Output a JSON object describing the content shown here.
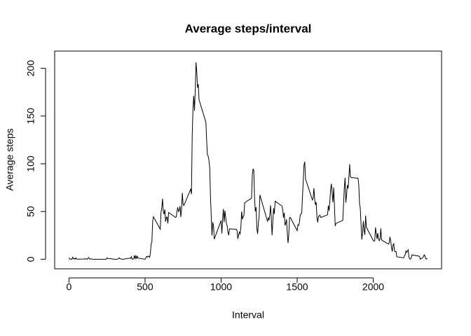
{
  "chart_data": {
    "type": "line",
    "title": "Average steps/interval",
    "x_label": "Interval",
    "y_label": "Average steps",
    "color": "#000000",
    "xlim": [
      -94.2,
      2449.2
    ],
    "ylim": [
      -10,
      218
    ],
    "xticks": [
      0,
      500,
      1000,
      1500,
      2000
    ],
    "yticks": [
      0,
      50,
      100,
      150,
      200
    ],
    "x": [
      0,
      5,
      10,
      15,
      20,
      25,
      30,
      35,
      40,
      45,
      50,
      55,
      100,
      105,
      110,
      115,
      120,
      125,
      130,
      135,
      140,
      145,
      150,
      155,
      200,
      215,
      230,
      245,
      250,
      255,
      300,
      310,
      315,
      320,
      325,
      330,
      335,
      340,
      345,
      350,
      355,
      400,
      405,
      410,
      415,
      420,
      425,
      430,
      435,
      440,
      445,
      450,
      455,
      500,
      505,
      510,
      515,
      520,
      525,
      530,
      535,
      540,
      545,
      550,
      555,
      600,
      605,
      610,
      615,
      620,
      625,
      630,
      635,
      640,
      645,
      650,
      655,
      700,
      705,
      710,
      715,
      720,
      725,
      730,
      735,
      740,
      745,
      750,
      755,
      800,
      805,
      810,
      815,
      820,
      825,
      830,
      835,
      840,
      845,
      850,
      855,
      900,
      905,
      910,
      915,
      920,
      925,
      930,
      935,
      940,
      945,
      950,
      955,
      1000,
      1005,
      1010,
      1015,
      1020,
      1025,
      1030,
      1035,
      1040,
      1045,
      1050,
      1055,
      1100,
      1105,
      1110,
      1115,
      1120,
      1125,
      1130,
      1135,
      1140,
      1145,
      1150,
      1155,
      1200,
      1205,
      1210,
      1215,
      1220,
      1225,
      1230,
      1235,
      1240,
      1245,
      1250,
      1255,
      1300,
      1305,
      1310,
      1315,
      1320,
      1325,
      1330,
      1335,
      1340,
      1345,
      1350,
      1355,
      1400,
      1405,
      1410,
      1415,
      1420,
      1425,
      1430,
      1435,
      1440,
      1445,
      1450,
      1455,
      1500,
      1505,
      1510,
      1515,
      1520,
      1525,
      1530,
      1535,
      1540,
      1545,
      1550,
      1555,
      1600,
      1605,
      1610,
      1615,
      1620,
      1625,
      1630,
      1635,
      1640,
      1645,
      1650,
      1655,
      1700,
      1705,
      1710,
      1715,
      1720,
      1725,
      1730,
      1735,
      1740,
      1745,
      1750,
      1755,
      1800,
      1805,
      1810,
      1815,
      1820,
      1825,
      1830,
      1835,
      1840,
      1845,
      1850,
      1855,
      1900,
      1905,
      1910,
      1915,
      1920,
      1925,
      1930,
      1935,
      1940,
      1945,
      1950,
      1955,
      2000,
      2005,
      2010,
      2015,
      2020,
      2025,
      2030,
      2035,
      2040,
      2045,
      2050,
      2055,
      2100,
      2105,
      2110,
      2115,
      2120,
      2125,
      2130,
      2135,
      2140,
      2145,
      2150,
      2155,
      2200,
      2205,
      2210,
      2215,
      2220,
      2225,
      2230,
      2235,
      2240,
      2245,
      2250,
      2255,
      2300,
      2305,
      2310,
      2315,
      2320,
      2325,
      2330,
      2335,
      2340,
      2345,
      2350,
      2355
    ],
    "values": [
      1.7,
      0.3,
      0.1,
      0.2,
      0.1,
      2.1,
      0.5,
      0.9,
      0,
      1.5,
      0.3,
      0.1,
      0.3,
      0.7,
      0.2,
      0.3,
      0,
      1.1,
      1.8,
      0.2,
      0.2,
      0.4,
      0.3,
      0,
      0,
      0,
      0,
      0,
      1.5,
      0.9,
      0,
      0,
      0,
      0.2,
      0.6,
      1.6,
      0.6,
      0.5,
      0.1,
      0,
      0,
      1.2,
      0.9,
      2.6,
      0,
      0.3,
      0.4,
      4.1,
      0.7,
      3.5,
      0.8,
      3.1,
      1.1,
      0,
      1.6,
      3,
      2.2,
      3.3,
      3,
      2.1,
      6.1,
      16,
      18.3,
      39.5,
      44.5,
      31.5,
      49.3,
      53.8,
      63.5,
      50,
      47.1,
      52.2,
      39.3,
      44,
      44.2,
      37.4,
      49,
      43.8,
      44.4,
      50.5,
      54.5,
      49.9,
      51,
      55.7,
      44.3,
      52.3,
      69.5,
      57.8,
      56.2,
      73.4,
      68.2,
      129.4,
      157.5,
      171.2,
      155.4,
      177.3,
      206.2,
      195.9,
      179.6,
      183.4,
      167,
      143.5,
      124,
      109.1,
      108.1,
      103.7,
      96,
      66.2,
      45.2,
      24.8,
      38.8,
      35,
      21.1,
      40.6,
      27,
      42.4,
      52.7,
      38.9,
      50.8,
      44.3,
      37.4,
      34.7,
      28.3,
      25.1,
      31.9,
      31.4,
      29.7,
      21.3,
      25.5,
      28.4,
      26.5,
      33.4,
      50,
      42,
      44.6,
      46,
      59.2,
      63.9,
      87.7,
      94.8,
      92.8,
      63.4,
      50.2,
      54.5,
      32.4,
      26.5,
      37.7,
      45.1,
      67.3,
      42.3,
      39.9,
      43.3,
      41,
      46.2,
      56.4,
      42.8,
      25.1,
      40,
      53.5,
      47.3,
      60.8,
      55.8,
      51.9,
      43.6,
      48.7,
      35.5,
      37.5,
      41.8,
      27.5,
      17.1,
      26.1,
      43.6,
      43.8,
      30,
      36.1,
      35.5,
      38.8,
      46,
      47.8,
      48.1,
      65.3,
      82.9,
      98.7,
      102.1,
      84,
      62.1,
      64.1,
      74.5,
      63.2,
      56.9,
      59.8,
      43.9,
      38.6,
      44.7,
      45.5,
      46.2,
      43.7,
      46.6,
      56.3,
      50.7,
      61.2,
      73.4,
      79.1,
      68.9,
      59.7,
      75.1,
      56.5,
      34.8,
      37.5,
      40.7,
      58,
      74.7,
      85.3,
      59.3,
      67.8,
      77.7,
      74.2,
      85.3,
      99.5,
      86.6,
      85.6,
      84.9,
      77.8,
      58,
      53.4,
      36.3,
      20.7,
      27.4,
      40,
      30.2,
      25.5,
      45.7,
      33.5,
      19.6,
      19,
      19.3,
      33.3,
      26.8,
      21.2,
      27.3,
      21.3,
      19.5,
      21.3,
      32.3,
      20.2,
      15.9,
      17.2,
      23.5,
      19.2,
      12.5,
      8,
      14.7,
      16.3,
      8.7,
      7.8,
      8.1,
      2.6,
      1.5,
      3.7,
      4.8,
      8.5,
      7.1,
      8.7,
      9.8,
      2.2,
      0.3,
      0.1,
      1.6,
      4.6,
      3.3,
      2.8,
      0,
      0.8,
      1,
      1.6,
      2.6,
      4.7,
      3.3,
      0.6,
      0.2,
      1.1
    ]
  }
}
